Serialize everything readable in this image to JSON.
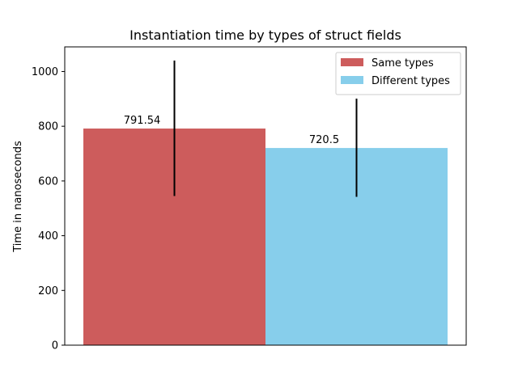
{
  "chart_data": {
    "type": "bar",
    "title": "Instantiation time by types of struct fields",
    "xlabel": "",
    "ylabel": "Time in nanoseconds",
    "ylim": [
      0,
      1090
    ],
    "yticks": [
      0,
      200,
      400,
      600,
      800,
      1000
    ],
    "grid": false,
    "legend_position": "top-right",
    "series": [
      {
        "name": "Same types",
        "value": 791.54,
        "label": "791.54",
        "error_low": 545,
        "error_high": 1040,
        "color": "#cd5c5c"
      },
      {
        "name": "Different types",
        "value": 720.5,
        "label": "720.5",
        "error_low": 542,
        "error_high": 901,
        "color": "#87ceeb"
      }
    ]
  }
}
